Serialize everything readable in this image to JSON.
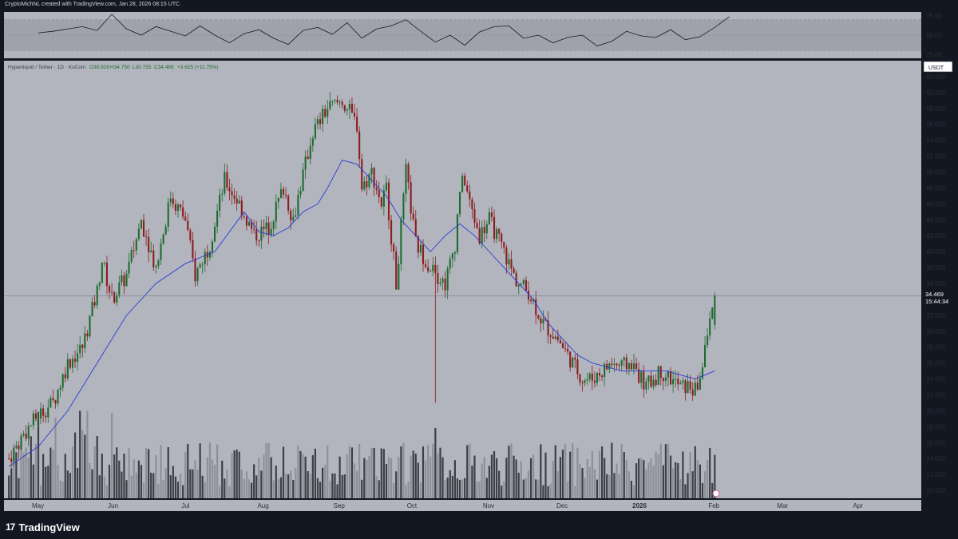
{
  "header": {
    "credit": "CryptoMichNL created with TradingView.com, Jan 28, 2026 08:15 UTC"
  },
  "footer": {
    "brand_logo": "17",
    "brand_name": "TradingView"
  },
  "colors": {
    "background": "#b2b5be",
    "frame": "#131722",
    "up": "#1e6b2d",
    "down": "#8c1d1d",
    "ma": "#2b3bd6",
    "rsi": "#1a1a1a"
  },
  "chart_data": [
    {
      "type": "line",
      "title": "",
      "indicator": "RSI",
      "ylim": [
        20,
        80
      ],
      "y_ticks": [
        "75.00",
        "50.00",
        "25.00"
      ],
      "band": [
        30,
        70
      ],
      "x_days": [
        0,
        6,
        12,
        18,
        24,
        30,
        36,
        42,
        48,
        54,
        60,
        66,
        72,
        78,
        84,
        90,
        96,
        102,
        108,
        114,
        120,
        126,
        132,
        138,
        144,
        150,
        156,
        162,
        168,
        174,
        180,
        186,
        192,
        198,
        204,
        210,
        216,
        222,
        228,
        234,
        240,
        246,
        252,
        258,
        264,
        270,
        276,
        282
      ],
      "values": [
        53,
        55,
        58,
        61,
        56,
        77,
        58,
        50,
        61,
        55,
        49,
        62,
        50,
        40,
        52,
        57,
        46,
        38,
        56,
        60,
        51,
        66,
        46,
        58,
        62,
        70,
        55,
        41,
        50,
        37,
        54,
        61,
        62,
        46,
        50,
        40,
        47,
        50,
        36,
        42,
        55,
        49,
        47,
        57,
        44,
        48,
        60,
        74
      ]
    },
    {
      "type": "line",
      "title": "",
      "pair_label": "Hyperliquid / Tether · 1D · KuCoin",
      "ohlc": {
        "open": "O30.826",
        "high": "H34.750",
        "low": "L30.755",
        "close": "C34.469",
        "change": "+3.625 (+11.75%)"
      },
      "currency_badge": "USDT",
      "last_price": "34.469",
      "countdown": "15:44:34",
      "y_tick_labels": [
        "62.000",
        "60.000",
        "58.000",
        "56.000",
        "54.000",
        "52.000",
        "50.000",
        "48.000",
        "46.000",
        "44.000",
        "42.000",
        "40.000",
        "38.000",
        "36.000",
        "34.000",
        "32.000",
        "30.000",
        "28.000",
        "26.000",
        "24.000",
        "22.000",
        "20.000",
        "18.000",
        "16.000",
        "14.000",
        "12.000",
        "10.000"
      ],
      "ylim": [
        9,
        64
      ],
      "x_tick_labels": [
        "May",
        "Jun",
        "Jul",
        "Aug",
        "Sep",
        "Oct",
        "Nov",
        "Dec",
        "2026",
        "Feb",
        "Mar",
        "Apr"
      ],
      "x_tick_days": [
        0,
        31,
        61,
        92,
        123,
        153,
        184,
        214,
        245,
        276,
        304,
        335
      ],
      "series": [
        {
          "name": "",
          "kind": "close",
          "x_days": [
            -12,
            -6,
            0,
            6,
            12,
            18,
            24,
            26,
            30,
            36,
            42,
            48,
            54,
            60,
            64,
            70,
            76,
            82,
            88,
            94,
            100,
            104,
            106,
            112,
            118,
            124,
            130,
            132,
            136,
            140,
            142,
            146,
            150,
            154,
            160,
            166,
            170,
            172,
            174,
            176,
            180,
            184,
            190,
            194,
            196,
            200,
            206,
            212,
            218,
            222,
            226,
            230,
            234,
            238,
            242,
            246,
            248,
            254,
            258,
            262,
            266,
            268,
            270,
            272,
            274,
            276
          ],
          "values": [
            14,
            17,
            19.5,
            21,
            26,
            28,
            35,
            39,
            34,
            37,
            44,
            38,
            47,
            44,
            37,
            41,
            49,
            46,
            42,
            43,
            48,
            44,
            47,
            55,
            58,
            59,
            56,
            48,
            50,
            46,
            48,
            36,
            50,
            41,
            38,
            36,
            41,
            48,
            49,
            46,
            42,
            44,
            40,
            37,
            36,
            35,
            31,
            29,
            26,
            24,
            24,
            25,
            26,
            25.5,
            26,
            24,
            23,
            25,
            24,
            23,
            23,
            22.5,
            24,
            28,
            31,
            34.5
          ]
        },
        {
          "name": "",
          "kind": "moving-average",
          "x_days": [
            -12,
            0,
            12,
            24,
            36,
            48,
            60,
            72,
            84,
            90,
            96,
            102,
            108,
            114,
            118,
            124,
            130,
            136,
            142,
            148,
            154,
            160,
            166,
            172,
            178,
            184,
            190,
            196,
            202,
            208,
            214,
            220,
            226,
            232,
            238,
            244,
            250,
            256,
            262,
            268,
            272,
            276
          ],
          "values": [
            13,
            15.5,
            20,
            26,
            32,
            36,
            38.5,
            40,
            45,
            42.5,
            42,
            43,
            45,
            46,
            48,
            51.5,
            51,
            49,
            47,
            44,
            42,
            40,
            42,
            43.5,
            42,
            40,
            38,
            36,
            34,
            31,
            29,
            27,
            26,
            25.5,
            25,
            25,
            25,
            25,
            24.5,
            24,
            24.5,
            25
          ]
        }
      ]
    }
  ]
}
